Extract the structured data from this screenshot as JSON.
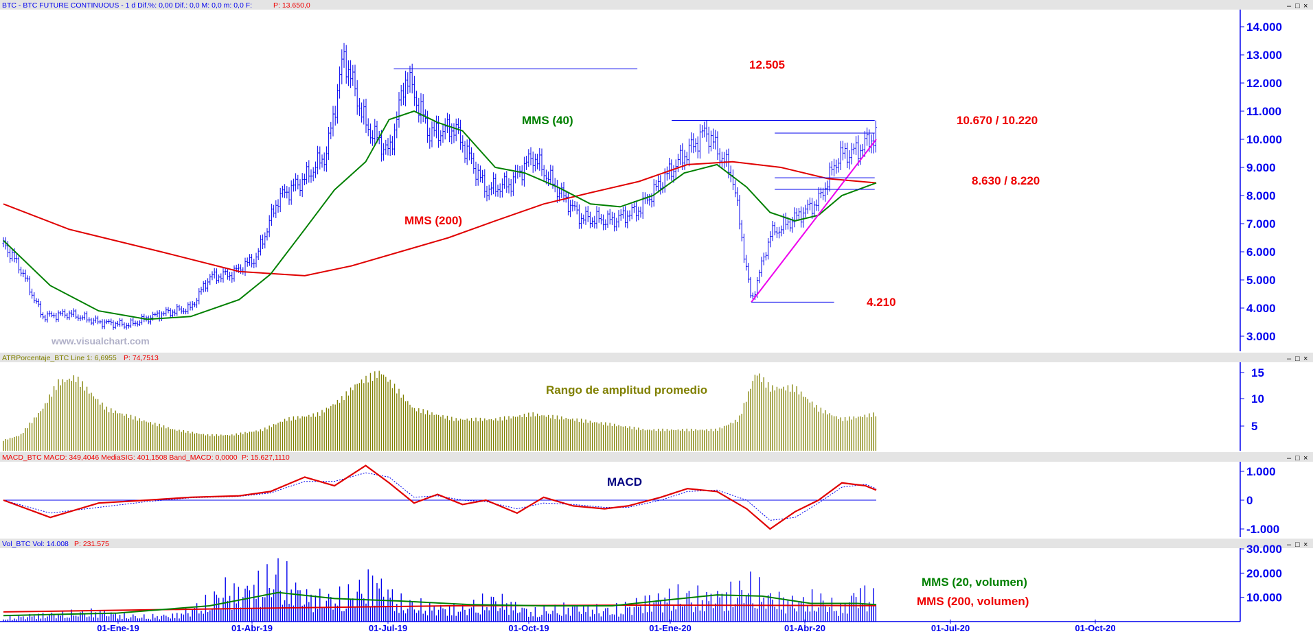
{
  "colors": {
    "price": "#0000ee",
    "axis": "#0000ee",
    "ma40": "#008000",
    "ma200": "#e00000",
    "annot": "#ee0000",
    "trend": "#ee00ee",
    "olive": "#808000",
    "macd_sig": "#0000ee",
    "header_bg": "#e4e4e4"
  },
  "panels": {
    "price": {
      "header": "BTC - BTC FUTURE CONTINUOUS - 1 d  Dif.%: 0,00  Dif.: 0,0  M: 0,0  m: 0,0  F:",
      "header_last": "P: 13.650,0",
      "watermark": "www.visualchart.com",
      "ticks": [
        "14.000",
        "13.000",
        "12.000",
        "11.000",
        "10.000",
        "9.000",
        "8.000",
        "7.000",
        "6.000",
        "5.000",
        "4.000",
        "3.000"
      ]
    },
    "atr": {
      "header": "ATRPorcentaje_BTC  Line 1: 6,6955",
      "header_last": "P: 74,7513",
      "title": "Rango de amplitud promedio",
      "ticks": [
        "15",
        "10",
        "5"
      ]
    },
    "macd": {
      "header": "MACD_BTC  MACD: 349,4046  MediaSIG: 401,1508  Band_MACD: 0,0000",
      "header_last": "P: 15.627,1110",
      "title": "MACD",
      "ticks": [
        "1.000",
        "0",
        "-1.000"
      ]
    },
    "vol": {
      "header": "Vol_BTC  Vol: 14.008",
      "header_last": "P: 231.575",
      "ticks": [
        "30.000",
        "20.000",
        "10.000"
      ]
    }
  },
  "x_labels": [
    "01-Ene-19",
    "01-Abr-19",
    "01-Jul-19",
    "01-Oct-19",
    "01-Ene-20",
    "01-Abr-20",
    "01-Jul-20",
    "01-Oct-20"
  ],
  "annotations": {
    "r1": "12.505",
    "r2": "10.670 / 10.220",
    "s1": "8.630 / 8.220",
    "s2": "4.210",
    "ma40": "MMS (40)",
    "ma200": "MMS (200)",
    "vol_ma20": "MMS (20, volumen)",
    "vol_ma200": "MMS (200, volumen)"
  },
  "window_buttons": [
    "–",
    "□",
    "×"
  ],
  "chart_data": [
    {
      "type": "ohlc",
      "title": "BTC - BTC FUTURE CONTINUOUS - 1 d",
      "x": [
        "2018-11-20",
        "2018-12-01",
        "2018-12-15",
        "2019-01-01",
        "2019-01-20",
        "2019-02-08",
        "2019-03-01",
        "2019-03-20",
        "2019-04-01",
        "2019-04-15",
        "2019-05-01",
        "2019-05-15",
        "2019-06-01",
        "2019-06-15",
        "2019-06-26",
        "2019-07-10",
        "2019-07-25",
        "2019-08-05",
        "2019-08-20",
        "2019-09-05",
        "2019-09-25",
        "2019-10-10",
        "2019-10-25",
        "2019-11-10",
        "2019-11-25",
        "2019-12-15",
        "2020-01-01",
        "2020-01-20",
        "2020-02-13",
        "2020-03-01",
        "2020-03-13",
        "2020-03-25",
        "2020-04-10",
        "2020-04-25",
        "2020-05-08",
        "2020-05-20",
        "2020-06-01"
      ],
      "close": [
        6300,
        5400,
        3700,
        3800,
        3500,
        3400,
        3800,
        4000,
        5100,
        5200,
        5800,
        7900,
        8600,
        9500,
        13000,
        10500,
        9500,
        12300,
        10200,
        10400,
        8200,
        8400,
        9400,
        8200,
        7200,
        7100,
        7500,
        8800,
        10300,
        8700,
        4210,
        6600,
        7200,
        7800,
        9400,
        9600,
        10150
      ],
      "ylim": [
        2500,
        14500
      ],
      "ticks": [
        14000,
        13000,
        12000,
        11000,
        10000,
        9000,
        8000,
        7000,
        6000,
        5000,
        4000,
        3000
      ]
    },
    {
      "type": "line",
      "series": [
        {
          "name": "MMS (40)",
          "x": [
            "2018-11-20",
            "2018-12-20",
            "2019-01-20",
            "2019-02-20",
            "2019-03-20",
            "2019-04-20",
            "2019-05-10",
            "2019-06-01",
            "2019-06-20",
            "2019-07-10",
            "2019-07-25",
            "2019-08-10",
            "2019-08-25",
            "2019-09-10",
            "2019-10-01",
            "2019-10-20",
            "2019-11-10",
            "2019-12-01",
            "2019-12-20",
            "2020-01-10",
            "2020-01-30",
            "2020-02-20",
            "2020-03-10",
            "2020-03-25",
            "2020-04-10",
            "2020-04-25",
            "2020-05-10",
            "2020-06-01"
          ],
          "values": [
            6400,
            4800,
            3900,
            3600,
            3700,
            4300,
            5200,
            6800,
            8200,
            9200,
            10700,
            11000,
            10600,
            10300,
            9000,
            8800,
            8300,
            7700,
            7600,
            8000,
            8800,
            9100,
            8300,
            7400,
            7100,
            7300,
            8000,
            8450
          ]
        },
        {
          "name": "MMS (200)",
          "x": [
            "2018-11-20",
            "2019-01-01",
            "2019-03-01",
            "2019-04-20",
            "2019-06-01",
            "2019-07-01",
            "2019-08-01",
            "2019-09-01",
            "2019-10-01",
            "2019-11-01",
            "2019-12-01",
            "2020-01-01",
            "2020-02-01",
            "2020-03-01",
            "2020-04-01",
            "2020-05-01",
            "2020-06-01"
          ],
          "values": [
            7700,
            6800,
            6000,
            5300,
            5150,
            5500,
            6000,
            6500,
            7100,
            7700,
            8100,
            8500,
            9100,
            9200,
            9000,
            8600,
            8450
          ]
        },
        {
          "name": "Trendline",
          "x": [
            "2020-03-13",
            "2020-06-01"
          ],
          "values": [
            4210,
            10000
          ]
        },
        {
          "name": "12.505",
          "x": [
            "2019-07-28",
            "2019-12-31"
          ],
          "values": [
            12505,
            12505
          ]
        },
        {
          "name": "10.670",
          "x": [
            "2020-01-22",
            "2020-05-31"
          ],
          "values": [
            10670,
            10670
          ]
        },
        {
          "name": "10.220",
          "x": [
            "2020-03-28",
            "2020-05-31"
          ],
          "values": [
            10220,
            10220
          ]
        },
        {
          "name": "8.630",
          "x": [
            "2020-03-28",
            "2020-05-31"
          ],
          "values": [
            8630,
            8630
          ]
        },
        {
          "name": "8.220",
          "x": [
            "2020-03-28",
            "2020-05-31"
          ],
          "values": [
            8220,
            8220
          ]
        },
        {
          "name": "4.210",
          "x": [
            "2020-03-13",
            "2020-05-05"
          ],
          "values": [
            4210,
            4210
          ]
        }
      ]
    },
    {
      "type": "bar",
      "title": "ATRPorcentaje_BTC",
      "x": [
        "2018-11-20",
        "2018-12-01",
        "2018-12-15",
        "2018-12-25",
        "2019-01-05",
        "2019-01-25",
        "2019-02-15",
        "2019-03-10",
        "2019-03-31",
        "2019-04-15",
        "2019-05-05",
        "2019-05-20",
        "2019-06-10",
        "2019-06-25",
        "2019-07-05",
        "2019-07-20",
        "2019-08-10",
        "2019-09-05",
        "2019-10-01",
        "2019-10-25",
        "2019-11-20",
        "2019-12-15",
        "2020-01-05",
        "2020-01-25",
        "2020-02-20",
        "2020-03-05",
        "2020-03-16",
        "2020-03-25",
        "2020-04-10",
        "2020-04-25",
        "2020-05-10",
        "2020-06-01"
      ],
      "values": [
        2,
        3,
        8,
        13,
        14,
        8,
        6,
        4,
        3,
        3,
        4,
        6,
        7,
        10,
        13,
        15,
        8,
        6,
        6,
        7,
        6,
        5,
        4,
        4,
        4,
        6,
        15,
        12,
        12,
        8,
        6,
        7
      ],
      "ylim": [
        0,
        16
      ],
      "ticks": [
        15,
        10,
        5
      ]
    },
    {
      "type": "line",
      "title": "MACD_BTC",
      "series": [
        {
          "name": "MACD",
          "x": [
            "2018-11-20",
            "2018-12-20",
            "2019-01-20",
            "2019-02-20",
            "2019-03-20",
            "2019-04-20",
            "2019-05-10",
            "2019-06-01",
            "2019-06-20",
            "2019-07-10",
            "2019-07-25",
            "2019-08-10",
            "2019-08-25",
            "2019-09-10",
            "2019-09-25",
            "2019-10-15",
            "2019-11-01",
            "2019-11-20",
            "2019-12-10",
            "2019-12-25",
            "2020-01-15",
            "2020-02-01",
            "2020-02-20",
            "2020-03-10",
            "2020-03-25",
            "2020-04-10",
            "2020-04-25",
            "2020-05-10",
            "2020-05-25",
            "2020-06-01"
          ],
          "values": [
            0,
            -600,
            -100,
            0,
            100,
            150,
            300,
            800,
            500,
            1200,
            600,
            -100,
            200,
            -150,
            0,
            -450,
            100,
            -200,
            -300,
            -200,
            100,
            400,
            300,
            -300,
            -1000,
            -400,
            0,
            600,
            500,
            350
          ]
        },
        {
          "name": "MediaSIG",
          "x": [
            "2018-11-20",
            "2018-12-20",
            "2019-01-20",
            "2019-02-20",
            "2019-03-20",
            "2019-04-20",
            "2019-05-10",
            "2019-06-01",
            "2019-06-20",
            "2019-07-10",
            "2019-07-25",
            "2019-08-10",
            "2019-08-25",
            "2019-09-10",
            "2019-09-25",
            "2019-10-15",
            "2019-11-01",
            "2019-11-20",
            "2019-12-10",
            "2019-12-25",
            "2020-01-15",
            "2020-02-01",
            "2020-02-20",
            "2020-03-10",
            "2020-03-25",
            "2020-04-10",
            "2020-04-25",
            "2020-05-10",
            "2020-05-25",
            "2020-06-01"
          ],
          "values": [
            0,
            -450,
            -250,
            -50,
            80,
            130,
            250,
            650,
            650,
            950,
            800,
            100,
            150,
            0,
            -50,
            -300,
            -100,
            -150,
            -250,
            -250,
            0,
            300,
            350,
            0,
            -700,
            -600,
            -100,
            450,
            550,
            400
          ]
        }
      ],
      "ylim": [
        -1200,
        1300
      ],
      "ticks": [
        1000,
        0,
        -1000
      ]
    },
    {
      "type": "bar",
      "title": "Vol_BTC",
      "x": [
        "2018-11-20",
        "2018-12-10",
        "2019-01-01",
        "2019-01-20",
        "2019-02-15",
        "2019-03-10",
        "2019-04-01",
        "2019-04-10",
        "2019-04-20",
        "2019-05-10",
        "2019-05-15",
        "2019-06-01",
        "2019-06-20",
        "2019-07-01",
        "2019-07-15",
        "2019-08-01",
        "2019-08-20",
        "2019-09-10",
        "2019-10-01",
        "2019-10-25",
        "2019-11-20",
        "2019-12-15",
        "2020-01-10",
        "2020-01-28",
        "2020-02-15",
        "2020-03-01",
        "2020-03-13",
        "2020-03-25",
        "2020-04-10",
        "2020-04-25",
        "2020-05-10",
        "2020-05-20",
        "2020-06-01"
      ],
      "values": [
        2000,
        4000,
        5000,
        6000,
        3000,
        4000,
        12000,
        20000,
        18000,
        26000,
        30000,
        16000,
        14000,
        17000,
        26000,
        12000,
        9000,
        8000,
        14000,
        6000,
        9000,
        7000,
        14000,
        16000,
        15000,
        18000,
        22000,
        15000,
        12000,
        14000,
        8000,
        19000,
        14008
      ],
      "series": [
        {
          "name": "MMS (20, volumen)",
          "x": [
            "2018-11-20",
            "2019-02-01",
            "2019-04-01",
            "2019-05-15",
            "2019-06-20",
            "2019-08-01",
            "2019-09-15",
            "2019-11-01",
            "2019-12-15",
            "2020-01-20",
            "2020-02-20",
            "2020-03-20",
            "2020-04-20",
            "2020-05-20",
            "2020-06-01"
          ],
          "values": [
            2500,
            3500,
            6500,
            12000,
            9500,
            8500,
            7000,
            6500,
            6500,
            9000,
            11000,
            10500,
            7500,
            7500,
            7000
          ]
        },
        {
          "name": "MMS (200, volumen)",
          "x": [
            "2018-11-20",
            "2019-05-01",
            "2019-09-01",
            "2020-01-01",
            "2020-06-01"
          ],
          "values": [
            4000,
            5500,
            6500,
            6800,
            6600
          ]
        }
      ],
      "ylim": [
        0,
        31000
      ],
      "ticks": [
        30000,
        20000,
        10000
      ]
    }
  ]
}
